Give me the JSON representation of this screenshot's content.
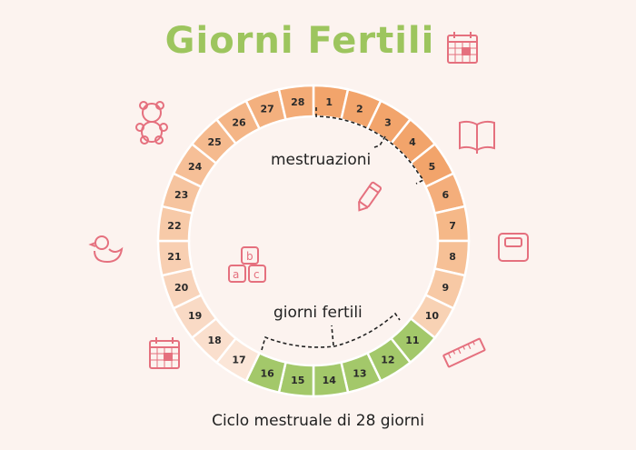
{
  "title": "Giorni Fertili",
  "labels": {
    "menstruation": "mestruazioni",
    "fertile": "giorni fertili"
  },
  "caption": "Ciclo mestruale di 28 giorni",
  "colors": {
    "title": "#9dc55e",
    "icons": "#e5707e",
    "menstruation": "#f2a46b",
    "fertile": "#a3c86a",
    "background": "#fcf3ef"
  },
  "icons": [
    "calendar-icon",
    "teddy-bear-icon",
    "book-icon",
    "pencil-icon",
    "toy-blocks-icon",
    "rubber-duck-icon",
    "scale-icon",
    "calendar-icon",
    "ruler-icon"
  ],
  "days": [
    {
      "n": "1",
      "phase": "menstruation",
      "color": "#f2a46b"
    },
    {
      "n": "2",
      "phase": "menstruation",
      "color": "#f2a46b"
    },
    {
      "n": "3",
      "phase": "menstruation",
      "color": "#f2a46b"
    },
    {
      "n": "4",
      "phase": "menstruation",
      "color": "#f2a46b"
    },
    {
      "n": "5",
      "phase": "menstruation",
      "color": "#f2a46b"
    },
    {
      "n": "6",
      "phase": "",
      "color": "#f4ae7b"
    },
    {
      "n": "7",
      "phase": "",
      "color": "#f5b888"
    },
    {
      "n": "8",
      "phase": "",
      "color": "#f6c096"
    },
    {
      "n": "9",
      "phase": "",
      "color": "#f7c9a5"
    },
    {
      "n": "10",
      "phase": "",
      "color": "#f8d2b4"
    },
    {
      "n": "11",
      "phase": "fertile",
      "color": "#a3c86a"
    },
    {
      "n": "12",
      "phase": "fertile",
      "color": "#a3c86a"
    },
    {
      "n": "13",
      "phase": "fertile",
      "color": "#a3c86a"
    },
    {
      "n": "14",
      "phase": "fertile",
      "color": "#a3c86a"
    },
    {
      "n": "15",
      "phase": "fertile",
      "color": "#a3c86a"
    },
    {
      "n": "16",
      "phase": "fertile",
      "color": "#a3c86a"
    },
    {
      "n": "17",
      "phase": "",
      "color": "#fbe6d8"
    },
    {
      "n": "18",
      "phase": "",
      "color": "#fadfcd"
    },
    {
      "n": "19",
      "phase": "",
      "color": "#f9dac5"
    },
    {
      "n": "20",
      "phase": "",
      "color": "#f8d4bb"
    },
    {
      "n": "21",
      "phase": "",
      "color": "#f8cfb2"
    },
    {
      "n": "22",
      "phase": "",
      "color": "#f7caa8"
    },
    {
      "n": "23",
      "phase": "",
      "color": "#f6c49f"
    },
    {
      "n": "24",
      "phase": "",
      "color": "#f6bf97"
    },
    {
      "n": "25",
      "phase": "",
      "color": "#f5ba8e"
    },
    {
      "n": "26",
      "phase": "",
      "color": "#f4b586"
    },
    {
      "n": "27",
      "phase": "",
      "color": "#f3b07e"
    },
    {
      "n": "28",
      "phase": "",
      "color": "#f3ab76"
    }
  ]
}
